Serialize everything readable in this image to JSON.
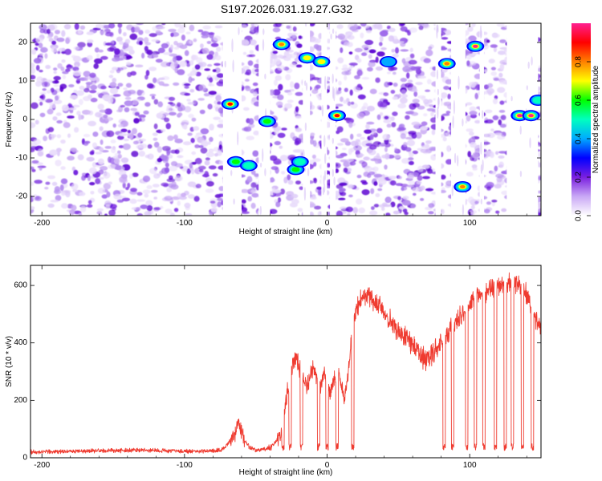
{
  "figure_title": "S197.2026.031.19.27.G32",
  "chart_data": [
    {
      "type": "heatmap",
      "title": "S197.2026.031.19.27.G32",
      "xlabel": "Height of straight line (km)",
      "ylabel": "Frequency (Hz)",
      "xlim": [
        -208,
        150
      ],
      "ylim": [
        -25,
        25
      ],
      "xticks": [
        -200,
        -100,
        0,
        100
      ],
      "xtick_labels": [
        "-200",
        "-100",
        "0",
        "100"
      ],
      "yticks": [
        20,
        10,
        0,
        -10,
        -20
      ],
      "ytick_labels": [
        "20",
        "10",
        "0",
        "-10",
        "-20"
      ],
      "colorbar": {
        "label": "Normalized spectral amplitude",
        "range": [
          0,
          1
        ],
        "ticks": [
          0.0,
          0.2,
          0.4,
          0.6,
          0.8
        ],
        "tick_labels": [
          "0.0",
          "0.2",
          "0.4",
          "0.6",
          "0.8"
        ],
        "colormap": [
          "#ffffff",
          "#c9a8f5",
          "#7a1fe0",
          "#0000ff",
          "#00aaff",
          "#00ffc0",
          "#00ff00",
          "#ffff00",
          "#ff8000",
          "#ff0000",
          "#ff2090"
        ]
      },
      "blank_bands": [
        {
          "x": [
            -73,
            -60
          ]
        },
        {
          "x": [
            -48,
            -40
          ]
        },
        {
          "x": [
            -17,
            -12
          ]
        },
        {
          "x": [
            -4,
            0
          ]
        },
        {
          "x": [
            2,
            6
          ]
        },
        {
          "x": [
            76,
            80
          ]
        },
        {
          "x": [
            87,
            97
          ]
        },
        {
          "x": [
            107,
            110
          ]
        },
        {
          "x": [
            126,
            148
          ]
        }
      ],
      "peaks": [
        {
          "x": -68,
          "y": 4,
          "amplitude": 0.85
        },
        {
          "x": -64,
          "y": -11,
          "amplitude": 0.6
        },
        {
          "x": -55,
          "y": -12,
          "amplitude": 0.45
        },
        {
          "x": -42,
          "y": -0.5,
          "amplitude": 0.55
        },
        {
          "x": -32,
          "y": 19.5,
          "amplitude": 0.75
        },
        {
          "x": -22,
          "y": -13,
          "amplitude": 0.6
        },
        {
          "x": -19,
          "y": -11,
          "amplitude": 0.5
        },
        {
          "x": -14,
          "y": 16,
          "amplitude": 0.7
        },
        {
          "x": -4,
          "y": 15,
          "amplitude": 0.7
        },
        {
          "x": 7,
          "y": 1,
          "amplitude": 0.9
        },
        {
          "x": 43,
          "y": 15,
          "amplitude": 0.35
        },
        {
          "x": 84,
          "y": 14.5,
          "amplitude": 0.75
        },
        {
          "x": 95,
          "y": -17.5,
          "amplitude": 0.75
        },
        {
          "x": 104,
          "y": 19,
          "amplitude": 0.95
        },
        {
          "x": 135,
          "y": 1,
          "amplitude": 0.95
        },
        {
          "x": 143,
          "y": 1,
          "amplitude": 0.95
        },
        {
          "x": 148,
          "y": 5,
          "amplitude": 0.5
        }
      ]
    },
    {
      "type": "line",
      "xlabel": "Height of straight line (km)",
      "ylabel": "SNR (10 * v/v)",
      "xlim": [
        -208,
        150
      ],
      "ylim": [
        0,
        670
      ],
      "xticks": [
        -200,
        -100,
        0,
        100
      ],
      "xtick_labels": [
        "-200",
        "-100",
        "0",
        "100"
      ],
      "yticks": [
        0,
        200,
        400,
        600
      ],
      "ytick_labels": [
        "0",
        "200",
        "400",
        "600"
      ],
      "color": "#ef3b30",
      "series": [
        {
          "name": "SNR",
          "x": [
            -208,
            -190,
            -170,
            -150,
            -130,
            -110,
            -90,
            -75,
            -70,
            -65,
            -62,
            -58,
            -55,
            -50,
            -45,
            -40,
            -35,
            -32,
            -30,
            -28,
            -26,
            -24,
            -22,
            -20,
            -18,
            -16,
            -14,
            -12,
            -10,
            -8,
            -6,
            -4,
            -2,
            0,
            2,
            4,
            6,
            8,
            10,
            12,
            14,
            16,
            18,
            20,
            25,
            30,
            35,
            40,
            45,
            50,
            55,
            60,
            65,
            70,
            75,
            80,
            85,
            90,
            95,
            100,
            105,
            110,
            115,
            120,
            125,
            130,
            135,
            140,
            145,
            150
          ],
          "y": [
            20,
            22,
            24,
            25,
            26,
            24,
            22,
            25,
            45,
            80,
            125,
            60,
            40,
            25,
            30,
            35,
            60,
            90,
            160,
            230,
            280,
            330,
            350,
            320,
            290,
            260,
            250,
            280,
            310,
            290,
            240,
            260,
            300,
            270,
            220,
            260,
            280,
            300,
            250,
            200,
            260,
            360,
            450,
            510,
            560,
            560,
            540,
            510,
            470,
            440,
            420,
            390,
            360,
            340,
            370,
            400,
            430,
            470,
            500,
            540,
            560,
            580,
            590,
            590,
            600,
            610,
            600,
            570,
            500,
            450
          ],
          "drop_to": 25,
          "drop_positions": [
            -40,
            -31,
            -26,
            -18,
            -6,
            0,
            7,
            18,
            82,
            88,
            98,
            104,
            110,
            118,
            125,
            130,
            137,
            144
          ]
        }
      ]
    }
  ]
}
